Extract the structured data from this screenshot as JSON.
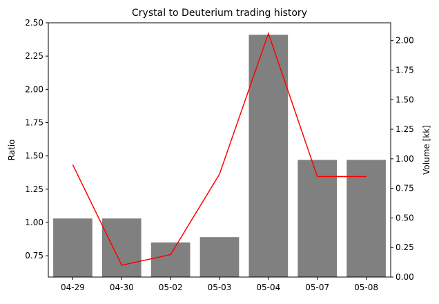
{
  "chart_data": {
    "type": "bar+line",
    "title": "Crystal to Deuterium trading history",
    "categories": [
      "04-29",
      "04-30",
      "05-02",
      "05-03",
      "05-04",
      "05-07",
      "05-08"
    ],
    "left_axis": {
      "label": "Ratio",
      "ylim": [
        0.59,
        2.5
      ],
      "ticks": [
        0.75,
        1.0,
        1.25,
        1.5,
        1.75,
        2.0,
        2.25,
        2.5
      ],
      "tick_labels": [
        "0.75",
        "1.00",
        "1.25",
        "1.50",
        "1.75",
        "2.00",
        "2.25",
        "2.50"
      ]
    },
    "right_axis": {
      "label": "Volume [kk]",
      "ylim": [
        0,
        2.15
      ],
      "ticks": [
        0,
        0.25,
        0.5,
        0.75,
        1.0,
        1.25,
        1.5,
        1.75,
        2.0
      ],
      "tick_labels": [
        "0.00",
        "0.25",
        "0.50",
        "0.75",
        "1.00",
        "1.25",
        "1.50",
        "1.75",
        "2.00"
      ]
    },
    "series": [
      {
        "type": "bar",
        "axis": "left",
        "color": "#808080",
        "values": [
          1.03,
          1.03,
          0.85,
          0.89,
          2.41,
          1.47,
          1.47
        ]
      },
      {
        "type": "line",
        "axis": "right",
        "color": "#ff0000",
        "values": [
          0.95,
          0.1,
          0.19,
          0.87,
          2.06,
          0.85,
          0.85
        ]
      }
    ],
    "grid": false,
    "legend": "none"
  }
}
